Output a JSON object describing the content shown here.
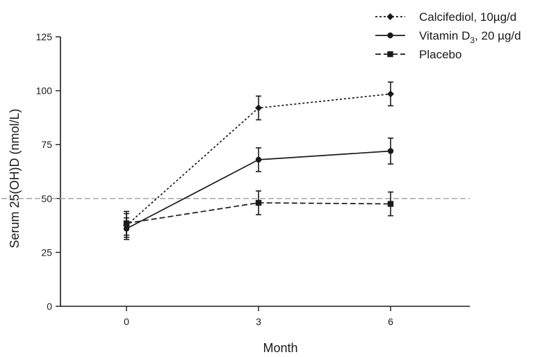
{
  "chart_data": {
    "type": "line",
    "title": "",
    "xlabel": "Month",
    "ylabel": "Serum 25(OH)D (nmol/L)",
    "x": [
      0,
      3,
      6
    ],
    "x_tick_labels": [
      "0",
      "3",
      "6"
    ],
    "xlim": [
      -1.5,
      7.8
    ],
    "ylim": [
      0,
      125
    ],
    "y_ticks": [
      0,
      25,
      50,
      75,
      100,
      125
    ],
    "y_tick_labels": [
      "0",
      "25",
      "50",
      "75",
      "100",
      "125"
    ],
    "reference_line": {
      "y": 50,
      "style": "dashed",
      "color": "#9e9e9e"
    },
    "grid": false,
    "legend_position": "top-right",
    "series": [
      {
        "name": "Calcifediol, 10µg/d",
        "line_style": "dotted",
        "marker": "diamond",
        "y": [
          37.5,
          92,
          98.5
        ],
        "error": [
          5.5,
          5.5,
          5.5
        ]
      },
      {
        "name": "Vitamin D",
        "name_subscript": "3",
        "name_suffix": ", 20 µg/d",
        "line_style": "solid",
        "marker": "circle",
        "y": [
          36,
          68,
          72
        ],
        "error": [
          5,
          5.5,
          6
        ]
      },
      {
        "name": "Placebo",
        "line_style": "dashed",
        "marker": "square",
        "y": [
          38.5,
          48,
          47.5
        ],
        "error": [
          5.5,
          5.5,
          5.5
        ]
      }
    ]
  }
}
